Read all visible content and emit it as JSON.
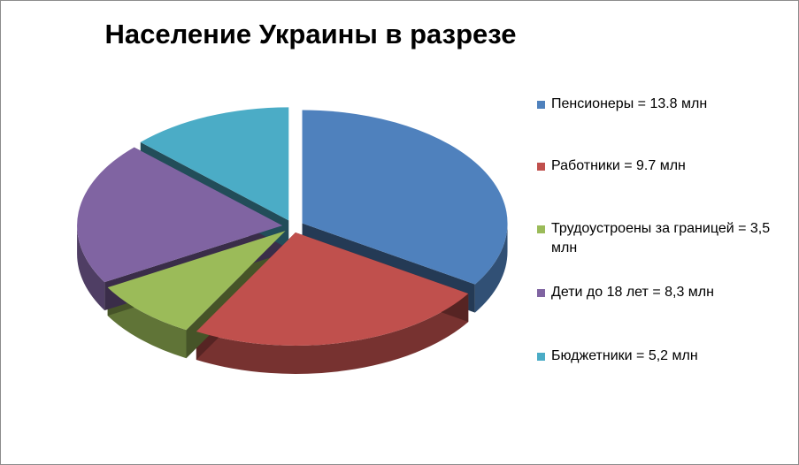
{
  "chart_data": {
    "type": "pie3d",
    "title": "Население Украины в разрезе",
    "categories": [
      "Пенсионеры = 13.8 млн",
      "Работники = 9.7 млн",
      "Трудоустроены за границей = 3,5 млн",
      "Дети до 18 лет = 8,3 млн",
      "Бюджетники = 5,2 млн"
    ],
    "values": [
      13.8,
      9.7,
      3.5,
      8.3,
      5.2
    ],
    "colors": [
      "#4f81bd",
      "#c0504d",
      "#9bbb59",
      "#8064a2",
      "#4bacc6"
    ],
    "legend": "right"
  }
}
